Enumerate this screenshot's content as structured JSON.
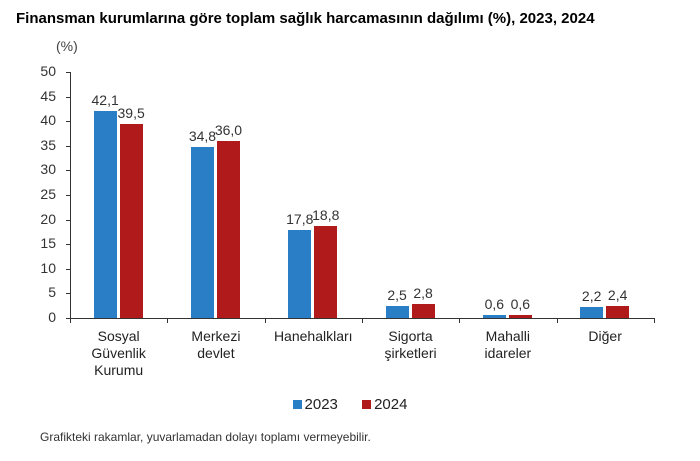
{
  "title": "Finansman kurumlarına göre toplam sağlık harcamasının dağılımı (%), 2023, 2024",
  "unit_label": "(%)",
  "footnote": "Grafikteki rakamlar, yuvarlamadan dolayı toplamı vermeyebilir.",
  "colors": {
    "2023": "#2a7ec6",
    "2024": "#b01a1a"
  },
  "chart_data": {
    "type": "bar",
    "title": "Finansman kurumlarına göre toplam sağlık harcamasının dağılımı (%), 2023, 2024",
    "xlabel": "",
    "ylabel": "(%)",
    "ylim": [
      0,
      50
    ],
    "yticks": [
      0,
      5,
      10,
      15,
      20,
      25,
      30,
      35,
      40,
      45,
      50
    ],
    "grid": false,
    "legend_position": "bottom",
    "categories": [
      "Sosyal Güvenlik Kurumu",
      "Merkezi devlet",
      "Hanehalkları",
      "Sigorta şirketleri",
      "Mahalli idareler",
      "Diğer"
    ],
    "series": [
      {
        "name": "2023",
        "values": [
          42.1,
          34.8,
          17.8,
          2.5,
          0.6,
          2.2
        ],
        "labels": [
          "42,1",
          "34,8",
          "17,8",
          "2,5",
          "0,6",
          "2,2"
        ]
      },
      {
        "name": "2024",
        "values": [
          39.5,
          36.0,
          18.8,
          2.8,
          0.6,
          2.4
        ],
        "labels": [
          "39,5",
          "36,0",
          "18,8",
          "2,8",
          "0,6",
          "2,4"
        ]
      }
    ]
  },
  "category_lines": [
    [
      "Sosyal",
      "Güvenlik",
      "Kurumu"
    ],
    [
      "Merkezi",
      "devlet"
    ],
    [
      "Hanehalkları"
    ],
    [
      "Sigorta",
      "şirketleri"
    ],
    [
      "Mahalli",
      "idareler"
    ],
    [
      "Diğer"
    ]
  ],
  "legend": [
    {
      "label": "2023"
    },
    {
      "label": "2024"
    }
  ]
}
